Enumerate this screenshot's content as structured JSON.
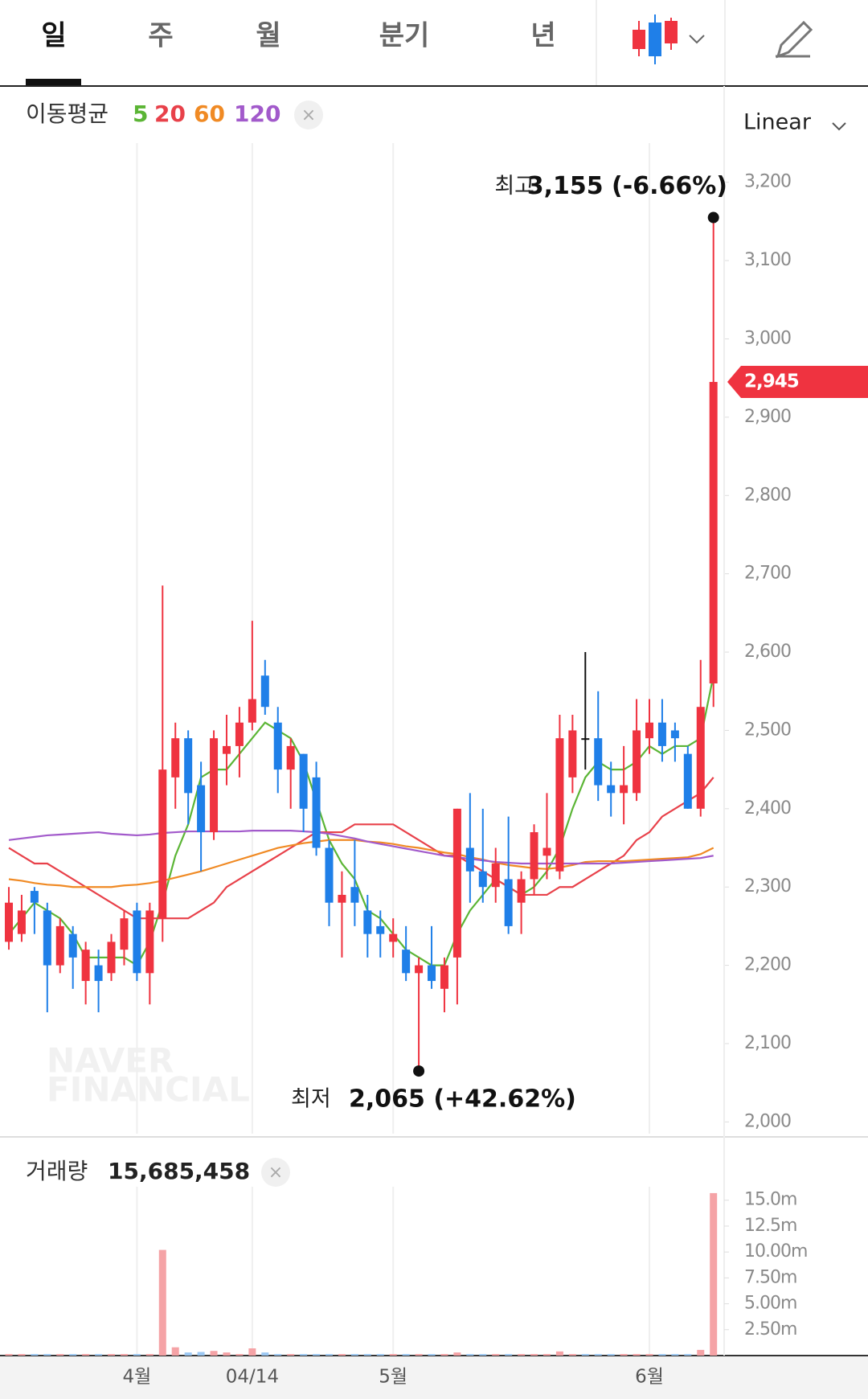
{
  "tabs": [
    "일",
    "주",
    "월",
    "분기",
    "년"
  ],
  "scale_label": "Linear",
  "watermark": [
    "NAVER",
    "FINANCIAL"
  ],
  "chart_data": {
    "type": "candlestick",
    "legend_title": "이동평균",
    "up_color": "#ef3340",
    "down_color": "#1f7fe8",
    "categories": [
      null,
      null,
      null,
      null,
      null,
      null,
      null,
      null,
      null,
      null,
      "4월",
      null,
      null,
      null,
      null,
      null,
      null,
      null,
      null,
      "04/14",
      null,
      null,
      null,
      null,
      null,
      null,
      null,
      null,
      null,
      null,
      "5월",
      null,
      null,
      null,
      null,
      null,
      null,
      null,
      null,
      null,
      null,
      null,
      null,
      null,
      null,
      null,
      null,
      null,
      null,
      null,
      "6월",
      null,
      null,
      null,
      null,
      null
    ],
    "open": [
      2230,
      2240,
      2295,
      2270,
      2200,
      2240,
      2180,
      2200,
      2190,
      2220,
      2270,
      2190,
      2260,
      2440,
      2490,
      2430,
      2370,
      2470,
      2480,
      2510,
      2570,
      2510,
      2450,
      2470,
      2440,
      2350,
      2280,
      2300,
      2270,
      2250,
      2230,
      2220,
      2190,
      2200,
      2170,
      2210,
      2350,
      2320,
      2300,
      2310,
      2280,
      2310,
      2340,
      2320,
      2440,
      2490,
      2490,
      2430,
      2420,
      2420,
      2490,
      2510,
      2500,
      2470,
      2400,
      2560
    ],
    "high": [
      2300,
      2290,
      2300,
      2280,
      2260,
      2250,
      2230,
      2220,
      2240,
      2270,
      2280,
      2280,
      2685,
      2510,
      2500,
      2460,
      2500,
      2520,
      2530,
      2640,
      2590,
      2530,
      2490,
      2470,
      2460,
      2360,
      2320,
      2360,
      2290,
      2270,
      2260,
      2250,
      2210,
      2250,
      2210,
      2400,
      2420,
      2400,
      2350,
      2390,
      2320,
      2380,
      2420,
      2520,
      2520,
      2600,
      2550,
      2460,
      2480,
      2540,
      2540,
      2540,
      2510,
      2480,
      2590,
      3155
    ],
    "low": [
      2220,
      2230,
      2240,
      2140,
      2190,
      2170,
      2150,
      2140,
      2180,
      2200,
      2180,
      2150,
      2230,
      2400,
      2380,
      2320,
      2360,
      2430,
      2440,
      2500,
      2520,
      2420,
      2400,
      2370,
      2340,
      2250,
      2210,
      2250,
      2210,
      2210,
      2210,
      2180,
      2065,
      2170,
      2140,
      2150,
      2280,
      2280,
      2280,
      2240,
      2240,
      2290,
      2310,
      2310,
      2420,
      2450,
      2410,
      2390,
      2380,
      2410,
      2470,
      2460,
      2460,
      2400,
      2390,
      2530
    ],
    "close": [
      2280,
      2270,
      2280,
      2200,
      2250,
      2210,
      2220,
      2180,
      2230,
      2260,
      2190,
      2270,
      2450,
      2490,
      2420,
      2370,
      2490,
      2480,
      2510,
      2540,
      2530,
      2450,
      2480,
      2400,
      2350,
      2280,
      2290,
      2280,
      2240,
      2240,
      2240,
      2190,
      2200,
      2180,
      2200,
      2400,
      2320,
      2300,
      2330,
      2250,
      2310,
      2370,
      2350,
      2490,
      2500,
      2490,
      2430,
      2420,
      2430,
      2500,
      2510,
      2480,
      2490,
      2400,
      2530,
      2945
    ],
    "price_tag": "2,945",
    "series": [
      {
        "name": "5",
        "color": "#5bb535",
        "values": [
          2240,
          2260,
          2280,
          2270,
          2260,
          2240,
          2210,
          2210,
          2210,
          2210,
          2200,
          2230,
          2280,
          2340,
          2380,
          2440,
          2450,
          2450,
          2470,
          2490,
          2510,
          2500,
          2490,
          2460,
          2410,
          2360,
          2330,
          2310,
          2270,
          2260,
          2240,
          2220,
          2210,
          2200,
          2200,
          2240,
          2270,
          2290,
          2310,
          2300,
          2290,
          2300,
          2320,
          2350,
          2400,
          2440,
          2460,
          2450,
          2450,
          2460,
          2480,
          2470,
          2480,
          2480,
          2490,
          2570
        ]
      },
      {
        "name": "20",
        "color": "#e8414a",
        "values": [
          2350,
          2340,
          2330,
          2330,
          2320,
          2310,
          2300,
          2290,
          2280,
          2270,
          2260,
          2260,
          2260,
          2260,
          2260,
          2270,
          2280,
          2300,
          2310,
          2320,
          2330,
          2340,
          2350,
          2360,
          2370,
          2370,
          2370,
          2380,
          2380,
          2380,
          2380,
          2370,
          2360,
          2350,
          2340,
          2340,
          2330,
          2320,
          2310,
          2300,
          2290,
          2290,
          2290,
          2300,
          2300,
          2310,
          2320,
          2330,
          2340,
          2360,
          2370,
          2390,
          2400,
          2410,
          2420,
          2440
        ]
      },
      {
        "name": "60",
        "color": "#f08a24",
        "values": [
          2310,
          2308,
          2305,
          2303,
          2302,
          2300,
          2300,
          2300,
          2300,
          2302,
          2303,
          2305,
          2308,
          2312,
          2316,
          2320,
          2325,
          2330,
          2335,
          2340,
          2345,
          2350,
          2353,
          2356,
          2358,
          2360,
          2360,
          2360,
          2358,
          2357,
          2355,
          2352,
          2350,
          2347,
          2344,
          2342,
          2338,
          2335,
          2331,
          2328,
          2326,
          2324,
          2323,
          2325,
          2328,
          2332,
          2333,
          2333,
          2333,
          2334,
          2335,
          2336,
          2337,
          2338,
          2342,
          2350
        ]
      },
      {
        "name": "120",
        "color": "#a25acb",
        "values": [
          2360,
          2362,
          2364,
          2366,
          2367,
          2368,
          2369,
          2370,
          2368,
          2367,
          2366,
          2367,
          2369,
          2370,
          2371,
          2371,
          2371,
          2371,
          2371,
          2372,
          2372,
          2372,
          2372,
          2371,
          2370,
          2368,
          2365,
          2362,
          2358,
          2355,
          2352,
          2349,
          2346,
          2343,
          2340,
          2338,
          2336,
          2334,
          2332,
          2331,
          2330,
          2330,
          2330,
          2330,
          2330,
          2330,
          2330,
          2330,
          2331,
          2332,
          2333,
          2334,
          2335,
          2336,
          2337,
          2340
        ]
      }
    ],
    "ylim": [
      1985,
      3250
    ],
    "yticks": [
      {
        "value": 2000,
        "label": "2,000"
      },
      {
        "value": 2100,
        "label": "2,100"
      },
      {
        "value": 2200,
        "label": "2,200"
      },
      {
        "value": 2300,
        "label": "2,300"
      },
      {
        "value": 2400,
        "label": "2,400"
      },
      {
        "value": 2500,
        "label": "2,500"
      },
      {
        "value": 2600,
        "label": "2,600"
      },
      {
        "value": 2700,
        "label": "2,700"
      },
      {
        "value": 2800,
        "label": "2,800"
      },
      {
        "value": 2900,
        "label": "2,900"
      },
      {
        "value": 3000,
        "label": "3,000"
      },
      {
        "value": 3100,
        "label": "3,100"
      },
      {
        "value": 3200,
        "label": "3,200"
      }
    ],
    "annotations": {
      "high": {
        "label": "최고",
        "text": "3,155 (-6.66%)"
      },
      "low": {
        "label": "최저",
        "text": "2,065 (+42.62%)"
      }
    },
    "volume": {
      "title": "거래량",
      "last_label": "15,685,458",
      "values": [
        150000,
        150000,
        150000,
        150000,
        150000,
        150000,
        150000,
        150000,
        150000,
        150000,
        150000,
        150000,
        10200000,
        800000,
        300000,
        350000,
        450000,
        300000,
        150000,
        700000,
        300000,
        150000,
        150000,
        150000,
        150000,
        150000,
        150000,
        150000,
        150000,
        150000,
        150000,
        150000,
        150000,
        150000,
        150000,
        300000,
        150000,
        150000,
        150000,
        150000,
        150000,
        150000,
        150000,
        400000,
        150000,
        150000,
        150000,
        150000,
        150000,
        150000,
        150000,
        150000,
        150000,
        150000,
        550000,
        15685458
      ],
      "ylim": [
        0,
        16300000
      ],
      "yticks": [
        {
          "value": 2500000,
          "label": "2.50m"
        },
        {
          "value": 5000000,
          "label": "5.00m"
        },
        {
          "value": 7500000,
          "label": "7.50m"
        },
        {
          "value": 10000000,
          "label": "10.00m"
        },
        {
          "value": 12500000,
          "label": "12.5m"
        },
        {
          "value": 15000000,
          "label": "15.0m"
        }
      ]
    }
  }
}
